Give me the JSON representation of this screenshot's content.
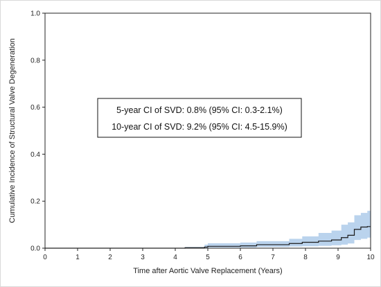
{
  "chart_data": {
    "type": "line",
    "title": "",
    "xlabel": "Time after Aortic Valve Replacement (Years)",
    "ylabel": "Cumulative Incidence of Structural Valve Degeneration",
    "xlim": [
      0,
      10
    ],
    "ylim": [
      0,
      1.0
    ],
    "x_ticks": [
      0,
      1,
      2,
      3,
      4,
      5,
      6,
      7,
      8,
      9,
      10
    ],
    "x_tick_labels": [
      "0",
      "1",
      "2",
      "3",
      "4",
      "5",
      "6",
      "7",
      "8",
      "9",
      "10"
    ],
    "y_ticks": [
      0,
      0.2,
      0.4,
      0.6,
      0.8,
      1.0
    ],
    "y_tick_labels": [
      "0.0",
      "0.2",
      "0.4",
      "0.6",
      "0.8",
      "1.0"
    ],
    "grid": false,
    "series": [
      {
        "step": true,
        "color": "#1a1a1a",
        "ci_color": "#aecbea",
        "points": [
          {
            "x": 0.0,
            "y": 0.0,
            "lo": 0.0,
            "hi": 0.0
          },
          {
            "x": 4.3,
            "y": 0.0,
            "lo": 0.0,
            "hi": 0.0
          },
          {
            "x": 4.3,
            "y": 0.002,
            "lo": 0.0,
            "hi": 0.005
          },
          {
            "x": 4.9,
            "y": 0.005,
            "lo": 0.001,
            "hi": 0.015
          },
          {
            "x": 5.0,
            "y": 0.008,
            "lo": 0.003,
            "hi": 0.021
          },
          {
            "x": 6.0,
            "y": 0.01,
            "lo": 0.003,
            "hi": 0.024
          },
          {
            "x": 6.5,
            "y": 0.015,
            "lo": 0.005,
            "hi": 0.03
          },
          {
            "x": 7.5,
            "y": 0.02,
            "lo": 0.007,
            "hi": 0.04
          },
          {
            "x": 7.9,
            "y": 0.025,
            "lo": 0.008,
            "hi": 0.05
          },
          {
            "x": 8.4,
            "y": 0.03,
            "lo": 0.01,
            "hi": 0.065
          },
          {
            "x": 8.8,
            "y": 0.035,
            "lo": 0.012,
            "hi": 0.075
          },
          {
            "x": 9.1,
            "y": 0.045,
            "lo": 0.015,
            "hi": 0.1
          },
          {
            "x": 9.3,
            "y": 0.055,
            "lo": 0.02,
            "hi": 0.11
          },
          {
            "x": 9.5,
            "y": 0.08,
            "lo": 0.035,
            "hi": 0.14
          },
          {
            "x": 9.7,
            "y": 0.09,
            "lo": 0.04,
            "hi": 0.15
          },
          {
            "x": 9.9,
            "y": 0.092,
            "lo": 0.045,
            "hi": 0.159
          },
          {
            "x": 10.0,
            "y": 0.092,
            "lo": 0.045,
            "hi": 0.159
          }
        ]
      }
    ],
    "annotation": {
      "lines": [
        "5-year CI of SVD: 0.8% (95% CI: 0.3-2.1%)",
        "10-year CI of SVD: 9.2% (95% CI: 4.5-15.9%)"
      ]
    }
  }
}
